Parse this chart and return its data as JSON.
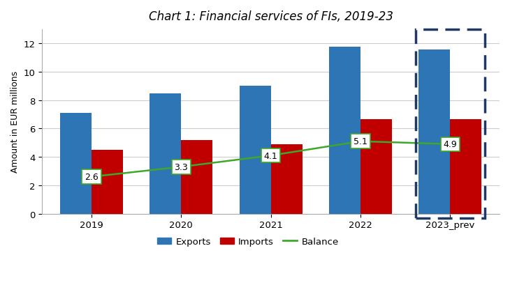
{
  "title": "Chart 1: Financial services of FIs, 2019-23",
  "categories": [
    "2019",
    "2020",
    "2021",
    "2022",
    "2023_prev"
  ],
  "exports": [
    7.1,
    8.5,
    9.0,
    11.75,
    11.55
  ],
  "imports": [
    4.5,
    5.2,
    4.9,
    6.65,
    6.65
  ],
  "balance": [
    2.6,
    3.3,
    4.1,
    5.1,
    4.9
  ],
  "bar_width": 0.35,
  "exports_color": "#2E75B6",
  "imports_color": "#C00000",
  "balance_color": "#3EA82B",
  "ylabel": "Amount in EUR millions",
  "ylim": [
    0,
    13
  ],
  "yticks": [
    0,
    2,
    4,
    6,
    8,
    10,
    12
  ],
  "background_color": "#FFFFFF",
  "plot_bg_color": "#FFFFFF",
  "title_fontsize": 12,
  "axis_fontsize": 9,
  "tick_fontsize": 9.5,
  "legend_fontsize": 9.5,
  "balance_label_fontsize": 9,
  "dashed_box_color": "#1F3864",
  "grid_color": "#CCCCCC"
}
